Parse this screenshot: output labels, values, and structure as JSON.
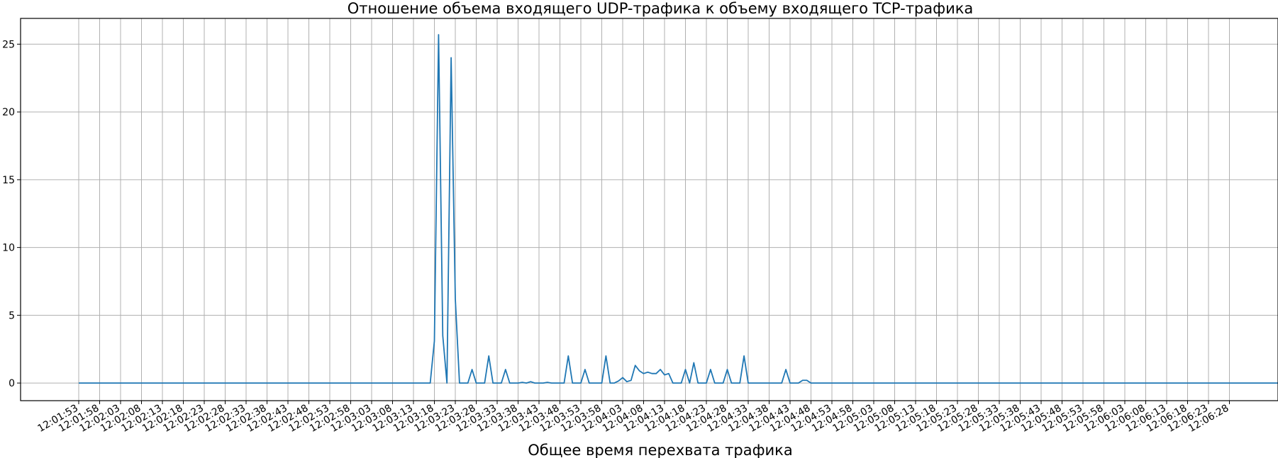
{
  "chart_data": {
    "type": "line",
    "title": "Отношение объема входящего UDP-трафика к объему входящего TCP-трафика",
    "xlabel": "Общее время перехвата трафика",
    "ylabel": "",
    "grid": true,
    "ylim": [
      -1.3,
      26.9
    ],
    "yticks": [
      0,
      5,
      10,
      15,
      20,
      25
    ],
    "x_start": "12:01:53",
    "x_end": "12:06:29",
    "x_step_seconds": 1,
    "xtick_labels": [
      "12:01:53",
      "12:01:58",
      "12:02:03",
      "12:02:08",
      "12:02:13",
      "12:02:18",
      "12:02:23",
      "12:02:28",
      "12:02:33",
      "12:02:38",
      "12:02:43",
      "12:02:48",
      "12:02:53",
      "12:02:58",
      "12:03:03",
      "12:03:08",
      "12:03:13",
      "12:03:18",
      "12:03:23",
      "12:03:28",
      "12:03:33",
      "12:03:38",
      "12:03:43",
      "12:03:48",
      "12:03:53",
      "12:03:58",
      "12:04:03",
      "12:04:08",
      "12:04:13",
      "12:04:18",
      "12:04:23",
      "12:04:28",
      "12:04:33",
      "12:04:38",
      "12:04:43",
      "12:04:48",
      "12:04:53",
      "12:04:58",
      "12:05:03",
      "12:05:08",
      "12:05:13",
      "12:05:18",
      "12:05:23",
      "12:05:28",
      "12:05:33",
      "12:05:38",
      "12:05:43",
      "12:05:48",
      "12:05:53",
      "12:05:58",
      "12:06:03",
      "12:06:08",
      "12:06:13",
      "12:06:18",
      "12:06:23",
      "12:06:28"
    ],
    "series": [
      {
        "name": "",
        "color": "#1f77b4",
        "values": [
          0,
          0,
          0,
          0,
          0,
          0,
          0,
          0,
          0,
          0,
          0,
          0,
          0,
          0,
          0,
          0,
          0,
          0,
          0,
          0,
          0,
          0,
          0,
          0,
          0,
          0,
          0,
          0,
          0,
          0,
          0,
          0,
          0,
          0,
          0,
          0,
          0,
          0,
          0,
          0,
          0,
          0,
          0,
          0,
          0,
          0,
          0,
          0,
          0,
          0,
          0,
          0,
          0,
          0,
          0,
          0,
          0,
          0,
          0,
          0,
          0,
          0,
          0,
          0,
          0,
          0,
          0,
          0,
          0,
          0,
          0,
          0,
          0,
          0,
          0,
          0,
          0,
          0,
          0,
          0,
          0,
          0,
          0,
          0,
          0,
          3.1,
          25.7,
          3.5,
          0,
          24,
          6.2,
          0,
          0,
          0,
          1,
          0,
          0,
          0,
          2,
          0,
          0,
          0,
          1,
          0,
          0,
          0,
          0.05,
          0,
          0.1,
          0,
          0,
          0,
          0.05,
          0,
          0,
          0,
          0,
          2,
          0,
          0,
          0,
          1,
          0,
          0,
          0,
          0,
          2,
          0,
          0,
          0.15,
          0.4,
          0.1,
          0.2,
          1.3,
          0.9,
          0.7,
          0.8,
          0.7,
          0.7,
          1,
          0.6,
          0.7,
          0,
          0,
          0,
          1,
          0,
          1.5,
          0,
          0,
          0,
          1,
          0,
          0,
          0,
          1,
          0,
          0,
          0,
          2,
          0,
          0,
          0,
          0,
          0,
          0,
          0,
          0,
          0,
          1,
          0,
          0,
          0,
          0.2,
          0.2,
          0,
          0,
          0,
          0,
          0,
          0,
          0,
          0,
          0,
          0,
          0,
          0,
          0,
          0,
          0,
          0,
          0,
          0,
          0,
          0,
          0,
          0,
          0,
          0,
          0,
          0,
          0,
          0,
          0,
          0,
          0,
          0,
          0,
          0,
          0,
          0,
          0,
          0,
          0,
          0,
          0,
          0,
          0,
          0,
          0,
          0,
          0,
          0,
          0,
          0,
          0,
          0,
          0,
          0,
          0,
          0,
          0,
          0,
          0,
          0,
          0,
          0,
          0,
          0,
          0,
          0,
          0,
          0,
          0,
          0,
          0,
          0,
          0,
          0,
          0,
          0,
          0,
          0,
          0,
          0,
          0,
          0,
          0,
          0,
          0,
          0,
          0,
          0,
          0,
          0,
          0,
          0,
          0,
          0,
          0,
          0,
          0,
          0,
          0,
          0,
          0,
          0,
          0,
          0,
          0,
          0,
          0,
          0,
          0,
          0,
          0,
          0,
          0,
          0,
          0,
          0,
          0,
          0,
          0,
          0
        ]
      }
    ]
  }
}
